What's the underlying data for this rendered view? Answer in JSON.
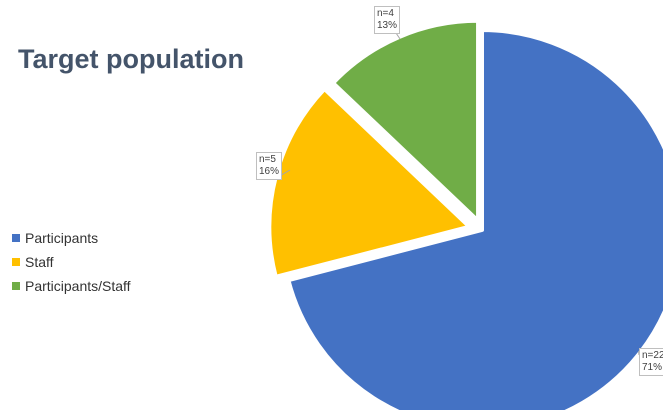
{
  "chart_data": {
    "type": "pie",
    "title": "Target population",
    "categories": [
      "Participants",
      "Staff",
      "Participants/Staff"
    ],
    "values": [
      22,
      5,
      4
    ],
    "percentages": [
      "71%",
      "16%",
      "13%"
    ],
    "data_labels": [
      {
        "n": "n=22",
        "pct": "71%"
      },
      {
        "n": "n=5",
        "pct": "16%"
      },
      {
        "n": "n=4",
        "pct": "13%"
      }
    ],
    "colors": [
      "#4472C4",
      "#FFC000",
      "#70AD47"
    ],
    "legend_position": "left",
    "exploded": true
  }
}
